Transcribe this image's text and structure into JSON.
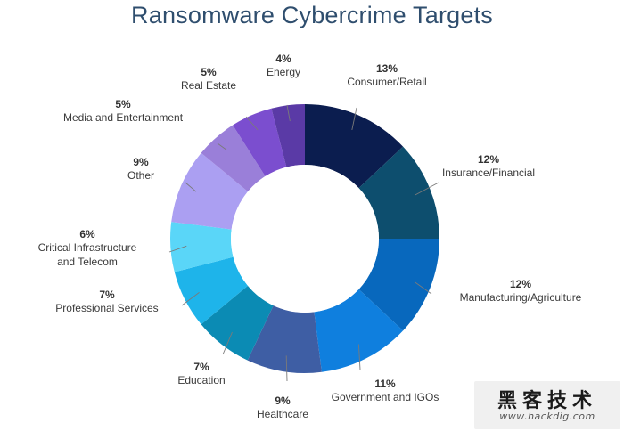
{
  "chart_data": {
    "type": "pie",
    "title": "Ransomware Cybercrime Targets",
    "slices": [
      {
        "label": "Consumer/Retail",
        "value": 13,
        "value_label": "13%",
        "color": "#0b1d4f"
      },
      {
        "label": "Insurance/Financial",
        "value": 12,
        "value_label": "12%",
        "color": "#0d4e6e"
      },
      {
        "label": "Manufacturing/Agriculture",
        "value": 12,
        "value_label": "12%",
        "color": "#0868bd"
      },
      {
        "label": "Government and IGOs",
        "value": 11,
        "value_label": "11%",
        "color": "#0f7fde"
      },
      {
        "label": "Healthcare",
        "value": 9,
        "value_label": "9%",
        "color": "#3e5ea4"
      },
      {
        "label": "Education",
        "value": 7,
        "value_label": "7%",
        "color": "#0b8bb4"
      },
      {
        "label": "Professional Services",
        "value": 7,
        "value_label": "7%",
        "color": "#1eb4ea"
      },
      {
        "label": "Critical Infrastructure and Telecom",
        "label_lines": [
          "Critical Infrastructure",
          "and Telecom"
        ],
        "value": 6,
        "value_label": "6%",
        "color": "#5ad6f8"
      },
      {
        "label": "Other",
        "value": 9,
        "value_label": "9%",
        "color": "#ab9ff2"
      },
      {
        "label": "Media and Entertainment",
        "value": 5,
        "value_label": "5%",
        "color": "#9a7fd9"
      },
      {
        "label": "Real Estate",
        "value": 5,
        "value_label": "5%",
        "color": "#7b4ecf"
      },
      {
        "label": "Energy",
        "value": 4,
        "value_label": "4%",
        "color": "#5a3aa6"
      }
    ],
    "donut": true,
    "start_angle_deg": 0,
    "direction": "clockwise",
    "legend": "none"
  },
  "watermark": {
    "text_cn": "黑客技术",
    "url": "www.hackdig.com"
  }
}
